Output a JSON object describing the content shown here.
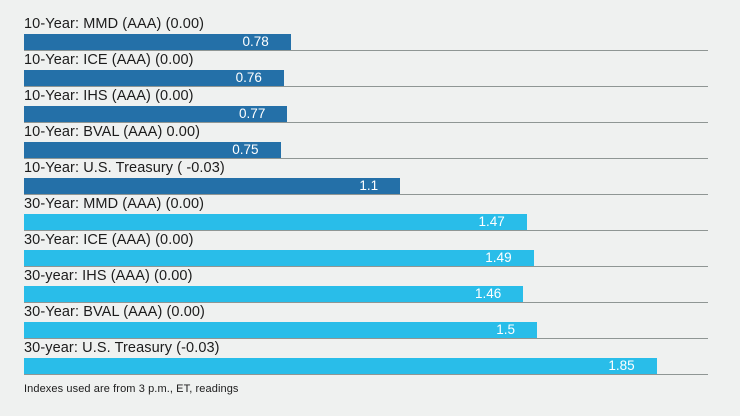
{
  "chart_data": {
    "type": "bar",
    "orientation": "horizontal",
    "title": "",
    "xlabel": "",
    "ylabel": "",
    "xlim": [
      0,
      2
    ],
    "grid": false,
    "legend": "none",
    "colors": {
      "ten_year_bar": "#2470a8",
      "thirty_year_bar": "#29bde9",
      "background": "#eff1f0",
      "baseline": "#8f9694",
      "value_text": "#ffffff",
      "label_text": "#1c1c1c"
    },
    "categories": [
      "10-Year: MMD (AAA) (0.00)",
      "10-Year: ICE (AAA) (0.00)",
      "10-Year: IHS (AAA) (0.00)",
      "10-Year: BVAL (AAA) 0.00)",
      "10-Year: U.S. Treasury ( -0.03)",
      "30-Year: MMD (AAA) (0.00)",
      "30-Year: ICE (AAA) (0.00)",
      "30-year: IHS (AAA) (0.00)",
      "30-Year: BVAL (AAA) (0.00)",
      "30-year: U.S. Treasury (-0.03)"
    ],
    "values": [
      0.78,
      0.76,
      0.77,
      0.75,
      1.1,
      1.47,
      1.49,
      1.46,
      1.5,
      1.85
    ],
    "bars": [
      {
        "label": "10-Year: MMD (AAA) (0.00)",
        "value": 0.78,
        "value_label": "0.78",
        "color": "#2470a8"
      },
      {
        "label": "10-Year: ICE (AAA) (0.00)",
        "value": 0.76,
        "value_label": "0.76",
        "color": "#2470a8"
      },
      {
        "label": "10-Year: IHS (AAA) (0.00)",
        "value": 0.77,
        "value_label": "0.77",
        "color": "#2470a8"
      },
      {
        "label": "10-Year: BVAL (AAA) 0.00)",
        "value": 0.75,
        "value_label": "0.75",
        "color": "#2470a8"
      },
      {
        "label": "10-Year: U.S. Treasury ( -0.03)",
        "value": 1.1,
        "value_label": "1.1",
        "color": "#2470a8"
      },
      {
        "label": "30-Year: MMD (AAA) (0.00)",
        "value": 1.47,
        "value_label": "1.47",
        "color": "#29bde9"
      },
      {
        "label": "30-Year: ICE (AAA) (0.00)",
        "value": 1.49,
        "value_label": "1.49",
        "color": "#29bde9"
      },
      {
        "label": "30-year: IHS (AAA) (0.00)",
        "value": 1.46,
        "value_label": "1.46",
        "color": "#29bde9"
      },
      {
        "label": "30-Year: BVAL (AAA) (0.00)",
        "value": 1.5,
        "value_label": "1.5",
        "color": "#29bde9"
      },
      {
        "label": "30-year: U.S. Treasury (-0.03)",
        "value": 1.85,
        "value_label": "1.85",
        "color": "#29bde9"
      }
    ],
    "footnote": "Indexes used are from 3 p.m., ET, readings"
  }
}
